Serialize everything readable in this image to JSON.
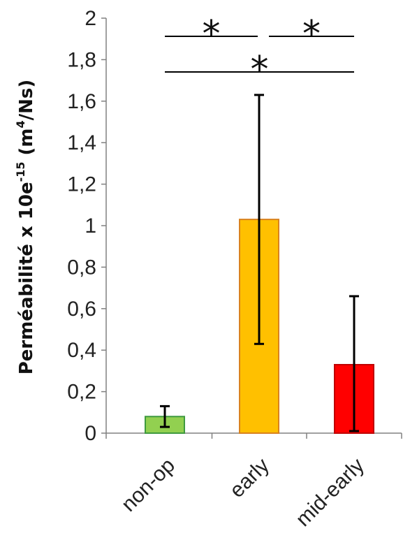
{
  "chart_data": {
    "type": "bar",
    "ylabel": {
      "main": "Perméabilité x 10e",
      "exp": "-15",
      "unit_open": " (m",
      "unit_exp": "4",
      "unit_close": "/Ns)"
    },
    "ylim": [
      0,
      2
    ],
    "yticks": [
      "0",
      "0,2",
      "0,4",
      "0,6",
      "0,8",
      "1",
      "1,2",
      "1,4",
      "1,6",
      "1,8",
      "2"
    ],
    "categories": [
      "non-op",
      "early",
      "mid-early"
    ],
    "values": [
      0.08,
      1.03,
      0.33
    ],
    "error_low": [
      0.03,
      0.43,
      0.01
    ],
    "error_high": [
      0.13,
      1.63,
      0.66
    ],
    "colors": {
      "fill": [
        "#92d050",
        "#ffc000",
        "#ff0000"
      ],
      "edge": [
        "#3f9a3f",
        "#d9821e",
        "#c00000"
      ]
    },
    "significance": [
      {
        "from": "non-op",
        "to": "early",
        "label": "*"
      },
      {
        "from": "early",
        "to": "mid-early",
        "label": "*"
      },
      {
        "from": "non-op",
        "to": "mid-early",
        "label": "*"
      }
    ],
    "grid": false,
    "legend": "none"
  }
}
